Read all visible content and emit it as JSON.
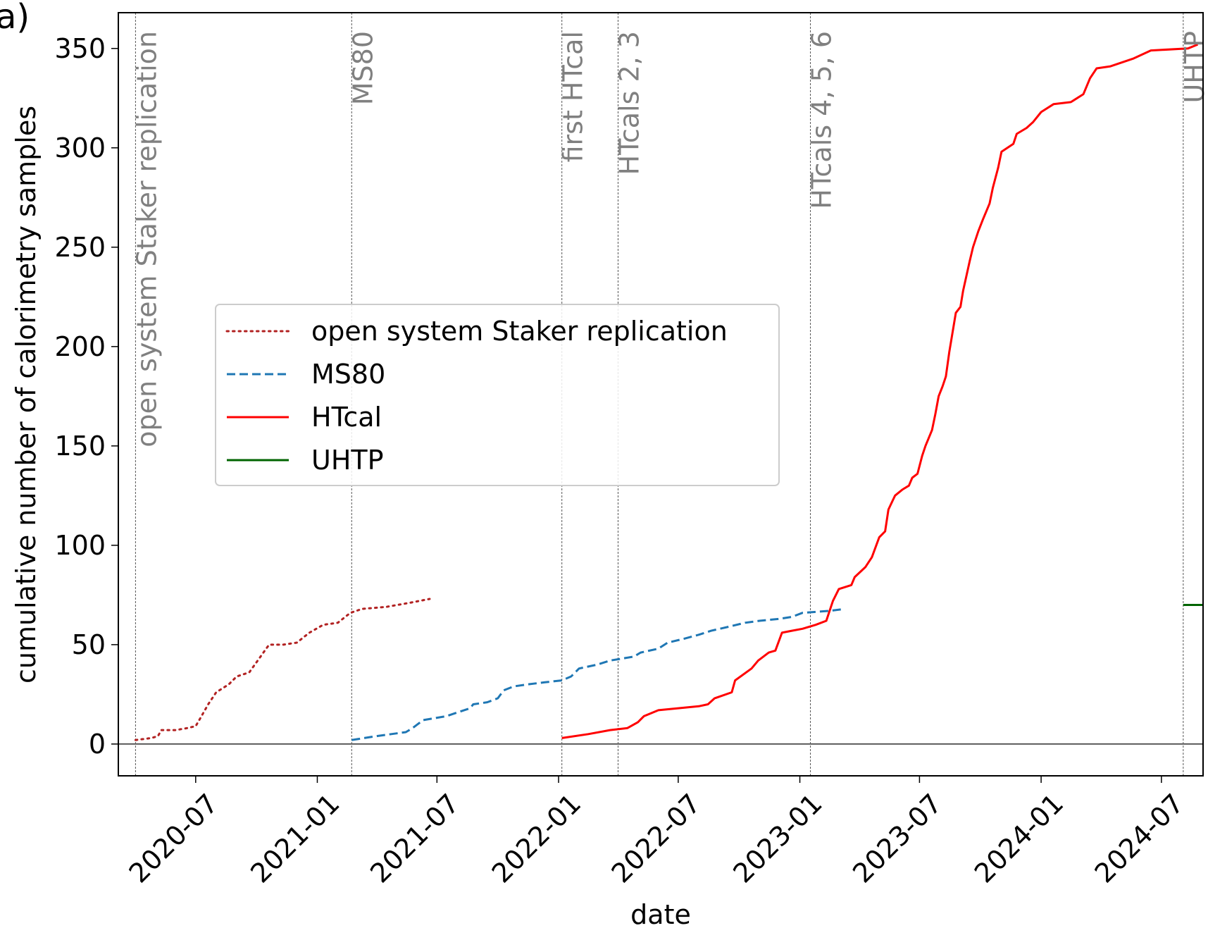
{
  "panel_label": "a)",
  "chart_data": {
    "type": "line",
    "xlabel": "date",
    "ylabel": "cumulative number of calorimetry samples",
    "xlim": [
      "2020-03-06",
      "2024-09-02"
    ],
    "ylim": [
      -16,
      368
    ],
    "x_ticks": [
      "2020-07",
      "2021-01",
      "2021-07",
      "2022-01",
      "2022-07",
      "2023-01",
      "2023-07",
      "2024-01",
      "2024-07"
    ],
    "y_ticks": [
      0,
      50,
      100,
      150,
      200,
      250,
      300,
      350
    ],
    "zero_line": 0,
    "event_lines": [
      {
        "date": "2020-04-01",
        "label": "open system Staker replication"
      },
      {
        "date": "2021-02-22",
        "label": "MS80"
      },
      {
        "date": "2022-01-06",
        "label": "first HTcal"
      },
      {
        "date": "2022-04-01",
        "label": "HTcals 2, 3"
      },
      {
        "date": "2023-01-17",
        "label": "HTcals 4, 5, 6"
      },
      {
        "date": "2024-08-03",
        "label": "UHTP"
      }
    ],
    "legend_position": "center-left",
    "series": [
      {
        "name": "open system Staker replication",
        "color": "#b22222",
        "style": "dotted",
        "points": [
          [
            "2020-04-01",
            2
          ],
          [
            "2020-04-25",
            3
          ],
          [
            "2020-05-05",
            4
          ],
          [
            "2020-05-10",
            7
          ],
          [
            "2020-06-01",
            7
          ],
          [
            "2020-06-18",
            8
          ],
          [
            "2020-07-01",
            9
          ],
          [
            "2020-07-08",
            13
          ],
          [
            "2020-07-20",
            20
          ],
          [
            "2020-08-01",
            26
          ],
          [
            "2020-08-20",
            30
          ],
          [
            "2020-09-01",
            34
          ],
          [
            "2020-09-20",
            36
          ],
          [
            "2020-10-05",
            43
          ],
          [
            "2020-10-20",
            50
          ],
          [
            "2020-11-10",
            50
          ],
          [
            "2020-12-01",
            51
          ],
          [
            "2020-12-20",
            56
          ],
          [
            "2021-01-10",
            60
          ],
          [
            "2021-02-01",
            61
          ],
          [
            "2021-02-20",
            66
          ],
          [
            "2021-03-10",
            68
          ],
          [
            "2021-04-15",
            69
          ],
          [
            "2021-05-20",
            71
          ],
          [
            "2021-06-20",
            73
          ]
        ]
      },
      {
        "name": "MS80",
        "color": "#1f77b4",
        "style": "dashed",
        "points": [
          [
            "2021-02-22",
            2
          ],
          [
            "2021-04-01",
            4
          ],
          [
            "2021-05-15",
            6
          ],
          [
            "2021-05-25",
            8
          ],
          [
            "2021-06-10",
            12
          ],
          [
            "2021-07-15",
            14
          ],
          [
            "2021-08-20",
            18
          ],
          [
            "2021-08-25",
            20
          ],
          [
            "2021-09-15",
            21
          ],
          [
            "2021-10-01",
            23
          ],
          [
            "2021-10-10",
            27
          ],
          [
            "2021-10-25",
            29
          ],
          [
            "2021-11-15",
            30
          ],
          [
            "2021-12-10",
            31
          ],
          [
            "2022-01-06",
            32
          ],
          [
            "2022-01-20",
            34
          ],
          [
            "2022-02-01",
            38
          ],
          [
            "2022-03-01",
            40
          ],
          [
            "2022-03-20",
            42
          ],
          [
            "2022-04-25",
            44
          ],
          [
            "2022-05-05",
            46
          ],
          [
            "2022-06-01",
            48
          ],
          [
            "2022-06-15",
            51
          ],
          [
            "2022-07-10",
            53
          ],
          [
            "2022-08-01",
            55
          ],
          [
            "2022-08-20",
            57
          ],
          [
            "2022-09-15",
            59
          ],
          [
            "2022-10-10",
            61
          ],
          [
            "2022-11-01",
            62
          ],
          [
            "2022-12-01",
            63
          ],
          [
            "2022-12-20",
            64
          ],
          [
            "2023-01-05",
            66
          ],
          [
            "2023-02-15",
            67
          ],
          [
            "2023-03-10",
            68
          ]
        ]
      },
      {
        "name": "HTcal",
        "color": "#ff0000",
        "style": "solid",
        "points": [
          [
            "2022-01-06",
            3
          ],
          [
            "2022-02-15",
            5
          ],
          [
            "2022-03-20",
            7
          ],
          [
            "2022-04-15",
            8
          ],
          [
            "2022-05-01",
            11
          ],
          [
            "2022-05-10",
            14
          ],
          [
            "2022-06-01",
            17
          ],
          [
            "2022-07-01",
            18
          ],
          [
            "2022-08-01",
            19
          ],
          [
            "2022-08-15",
            20
          ],
          [
            "2022-08-25",
            23
          ],
          [
            "2022-09-20",
            26
          ],
          [
            "2022-09-25",
            32
          ],
          [
            "2022-10-20",
            38
          ],
          [
            "2022-10-30",
            42
          ],
          [
            "2022-11-15",
            46
          ],
          [
            "2022-11-25",
            47
          ],
          [
            "2022-12-05",
            56
          ],
          [
            "2022-12-20",
            57
          ],
          [
            "2023-01-05",
            58
          ],
          [
            "2023-01-25",
            60
          ],
          [
            "2023-02-10",
            62
          ],
          [
            "2023-02-20",
            72
          ],
          [
            "2023-03-01",
            78
          ],
          [
            "2023-03-20",
            80
          ],
          [
            "2023-03-25",
            84
          ],
          [
            "2023-04-10",
            89
          ],
          [
            "2023-04-20",
            94
          ],
          [
            "2023-05-01",
            104
          ],
          [
            "2023-05-10",
            107
          ],
          [
            "2023-05-15",
            118
          ],
          [
            "2023-05-25",
            125
          ],
          [
            "2023-06-05",
            128
          ],
          [
            "2023-06-15",
            130
          ],
          [
            "2023-06-20",
            134
          ],
          [
            "2023-06-28",
            136
          ],
          [
            "2023-07-05",
            145
          ],
          [
            "2023-07-10",
            150
          ],
          [
            "2023-07-20",
            158
          ],
          [
            "2023-07-25",
            166
          ],
          [
            "2023-07-30",
            175
          ],
          [
            "2023-08-05",
            180
          ],
          [
            "2023-08-10",
            185
          ],
          [
            "2023-08-15",
            197
          ],
          [
            "2023-08-25",
            217
          ],
          [
            "2023-09-01",
            220
          ],
          [
            "2023-09-05",
            228
          ],
          [
            "2023-09-15",
            243
          ],
          [
            "2023-09-20",
            250
          ],
          [
            "2023-09-28",
            258
          ],
          [
            "2023-10-05",
            264
          ],
          [
            "2023-10-15",
            272
          ],
          [
            "2023-10-20",
            280
          ],
          [
            "2023-10-28",
            290
          ],
          [
            "2023-11-02",
            298
          ],
          [
            "2023-11-20",
            302
          ],
          [
            "2023-11-25",
            307
          ],
          [
            "2023-12-10",
            310
          ],
          [
            "2023-12-20",
            313
          ],
          [
            "2024-01-01",
            318
          ],
          [
            "2024-01-20",
            322
          ],
          [
            "2024-02-15",
            323
          ],
          [
            "2024-03-05",
            327
          ],
          [
            "2024-03-15",
            335
          ],
          [
            "2024-03-25",
            340
          ],
          [
            "2024-04-15",
            341
          ],
          [
            "2024-05-20",
            345
          ],
          [
            "2024-06-15",
            349
          ],
          [
            "2024-08-10",
            350
          ],
          [
            "2024-08-25",
            352
          ]
        ]
      },
      {
        "name": "UHTP",
        "color": "#006400",
        "style": "solid",
        "points": [
          [
            "2024-08-03",
            70
          ],
          [
            "2024-09-02",
            70
          ]
        ]
      }
    ]
  }
}
